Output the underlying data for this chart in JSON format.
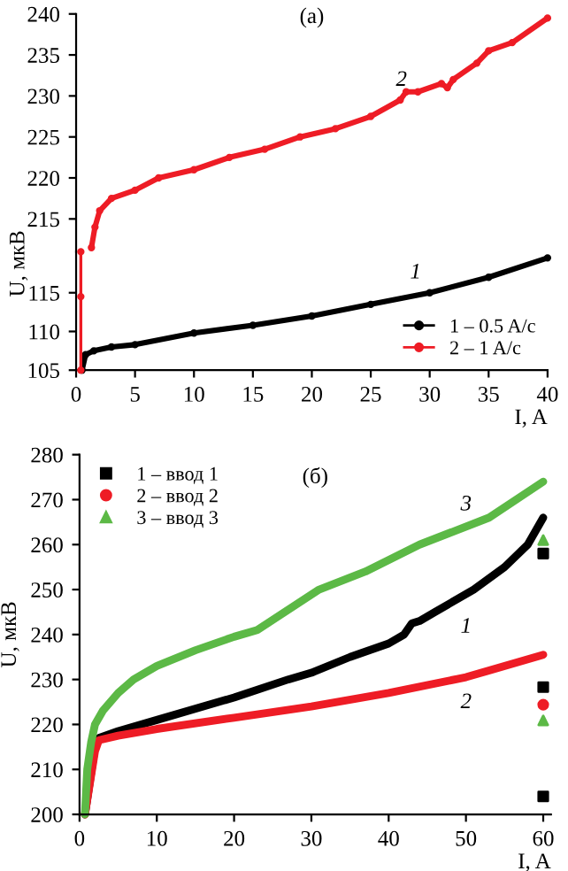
{
  "chart_data": [
    {
      "type": "line",
      "title": "(a)",
      "ylabel": "U, мкВ",
      "xlim": [
        0,
        40
      ],
      "xticks": [
        0,
        5,
        10,
        15,
        20,
        25,
        30,
        35,
        40
      ],
      "ylim": [
        211,
        240
      ],
      "yticks": [
        215,
        220,
        225,
        230,
        235,
        240
      ],
      "tick_labels": "y",
      "grid": false,
      "legend": false,
      "marker": "circle",
      "series": [
        {
          "color": "#ee1c25",
          "x": [
            1.3,
            1.6,
            2,
            3,
            5,
            7,
            10,
            13,
            16,
            19,
            22,
            25,
            27.5,
            28,
            29,
            31,
            31.5,
            32,
            34,
            35,
            37,
            40
          ],
          "values": [
            211.5,
            214,
            216,
            217.5,
            218.5,
            220,
            221,
            222.5,
            223.5,
            225,
            226,
            227.5,
            229.5,
            230.5,
            230.5,
            231.5,
            231,
            232,
            234,
            235.5,
            236.5,
            239.5
          ]
        }
      ],
      "annotations": [
        "2"
      ]
    },
    {
      "type": "line",
      "xlabel": "I, A",
      "xlim": [
        0,
        40
      ],
      "xticks": [
        0,
        5,
        10,
        15,
        20,
        25,
        30,
        35,
        40
      ],
      "ylim": [
        105,
        120.3
      ],
      "yticks": [
        105,
        110,
        115
      ],
      "grid": false,
      "legend": "bottom right",
      "marker": "circle",
      "series": [
        {
          "name": "1 – 0.5 A/c",
          "color": "#000000",
          "x": [
            0.5,
            0.8,
            1.5,
            3,
            5,
            10,
            15,
            20,
            25,
            30,
            35,
            40
          ],
          "values": [
            105,
            107,
            107.5,
            108,
            108.3,
            109.8,
            110.8,
            112,
            113.5,
            115,
            117,
            119.5
          ]
        },
        {
          "name": "2 – 1 A/c",
          "color": "#ee1c25",
          "x": [
            0.4,
            0.4,
            0.4
          ],
          "values": [
            105,
            114.5,
            120.3
          ]
        }
      ],
      "annotations": [
        "1"
      ]
    },
    {
      "type": "line",
      "title": "(б)",
      "ylabel": "U, мкВ",
      "xlabel": "I, A",
      "xlim": [
        0,
        61
      ],
      "xticks": [
        0,
        10,
        20,
        30,
        40,
        50,
        60
      ],
      "ylim": [
        200,
        280
      ],
      "yticks": [
        200,
        210,
        220,
        230,
        240,
        250,
        260,
        270,
        280
      ],
      "grid": false,
      "legend": "top left",
      "series": [
        {
          "color": "#000000",
          "x": [
            0.7,
            2,
            2.5,
            5,
            10,
            20,
            27,
            30,
            35,
            40,
            42,
            43,
            44,
            46,
            51,
            55,
            58,
            60
          ],
          "values": [
            200,
            215,
            217,
            218.5,
            221,
            226,
            230,
            231.5,
            235,
            238,
            240,
            242.5,
            243,
            245,
            250,
            255,
            260,
            266
          ]
        },
        {
          "color": "#ee1c25",
          "x": [
            0.7,
            2,
            2.5,
            5,
            10,
            20,
            30,
            40,
            50,
            60
          ],
          "values": [
            200,
            214,
            216.5,
            217.5,
            219,
            221.5,
            224,
            227,
            230.5,
            235.5
          ]
        },
        {
          "color": "#5cb946",
          "x": [
            0.7,
            1,
            1.5,
            2,
            3,
            5,
            7,
            10,
            15,
            20,
            23,
            31,
            37,
            44,
            53,
            60
          ],
          "values": [
            200,
            210,
            216,
            220,
            223,
            227,
            230,
            233,
            236.5,
            239.5,
            241,
            250,
            254,
            260,
            266,
            274
          ]
        },
        {
          "type": "scatter",
          "name": "1 – ввод 1",
          "marker": "square",
          "color": "#000000",
          "x": [
            60,
            60,
            60
          ],
          "values": [
            258,
            228.3,
            204
          ]
        },
        {
          "type": "scatter",
          "name": "2 – ввод 2",
          "marker": "circle",
          "color": "#ee1c25",
          "x": [
            60
          ],
          "values": [
            224.4
          ]
        },
        {
          "type": "scatter",
          "name": "3 – ввод 3",
          "marker": "triangle",
          "color": "#5cb946",
          "x": [
            60,
            60
          ],
          "values": [
            261,
            220.9
          ]
        }
      ],
      "annotations": [
        "3",
        "1",
        "2"
      ]
    }
  ]
}
